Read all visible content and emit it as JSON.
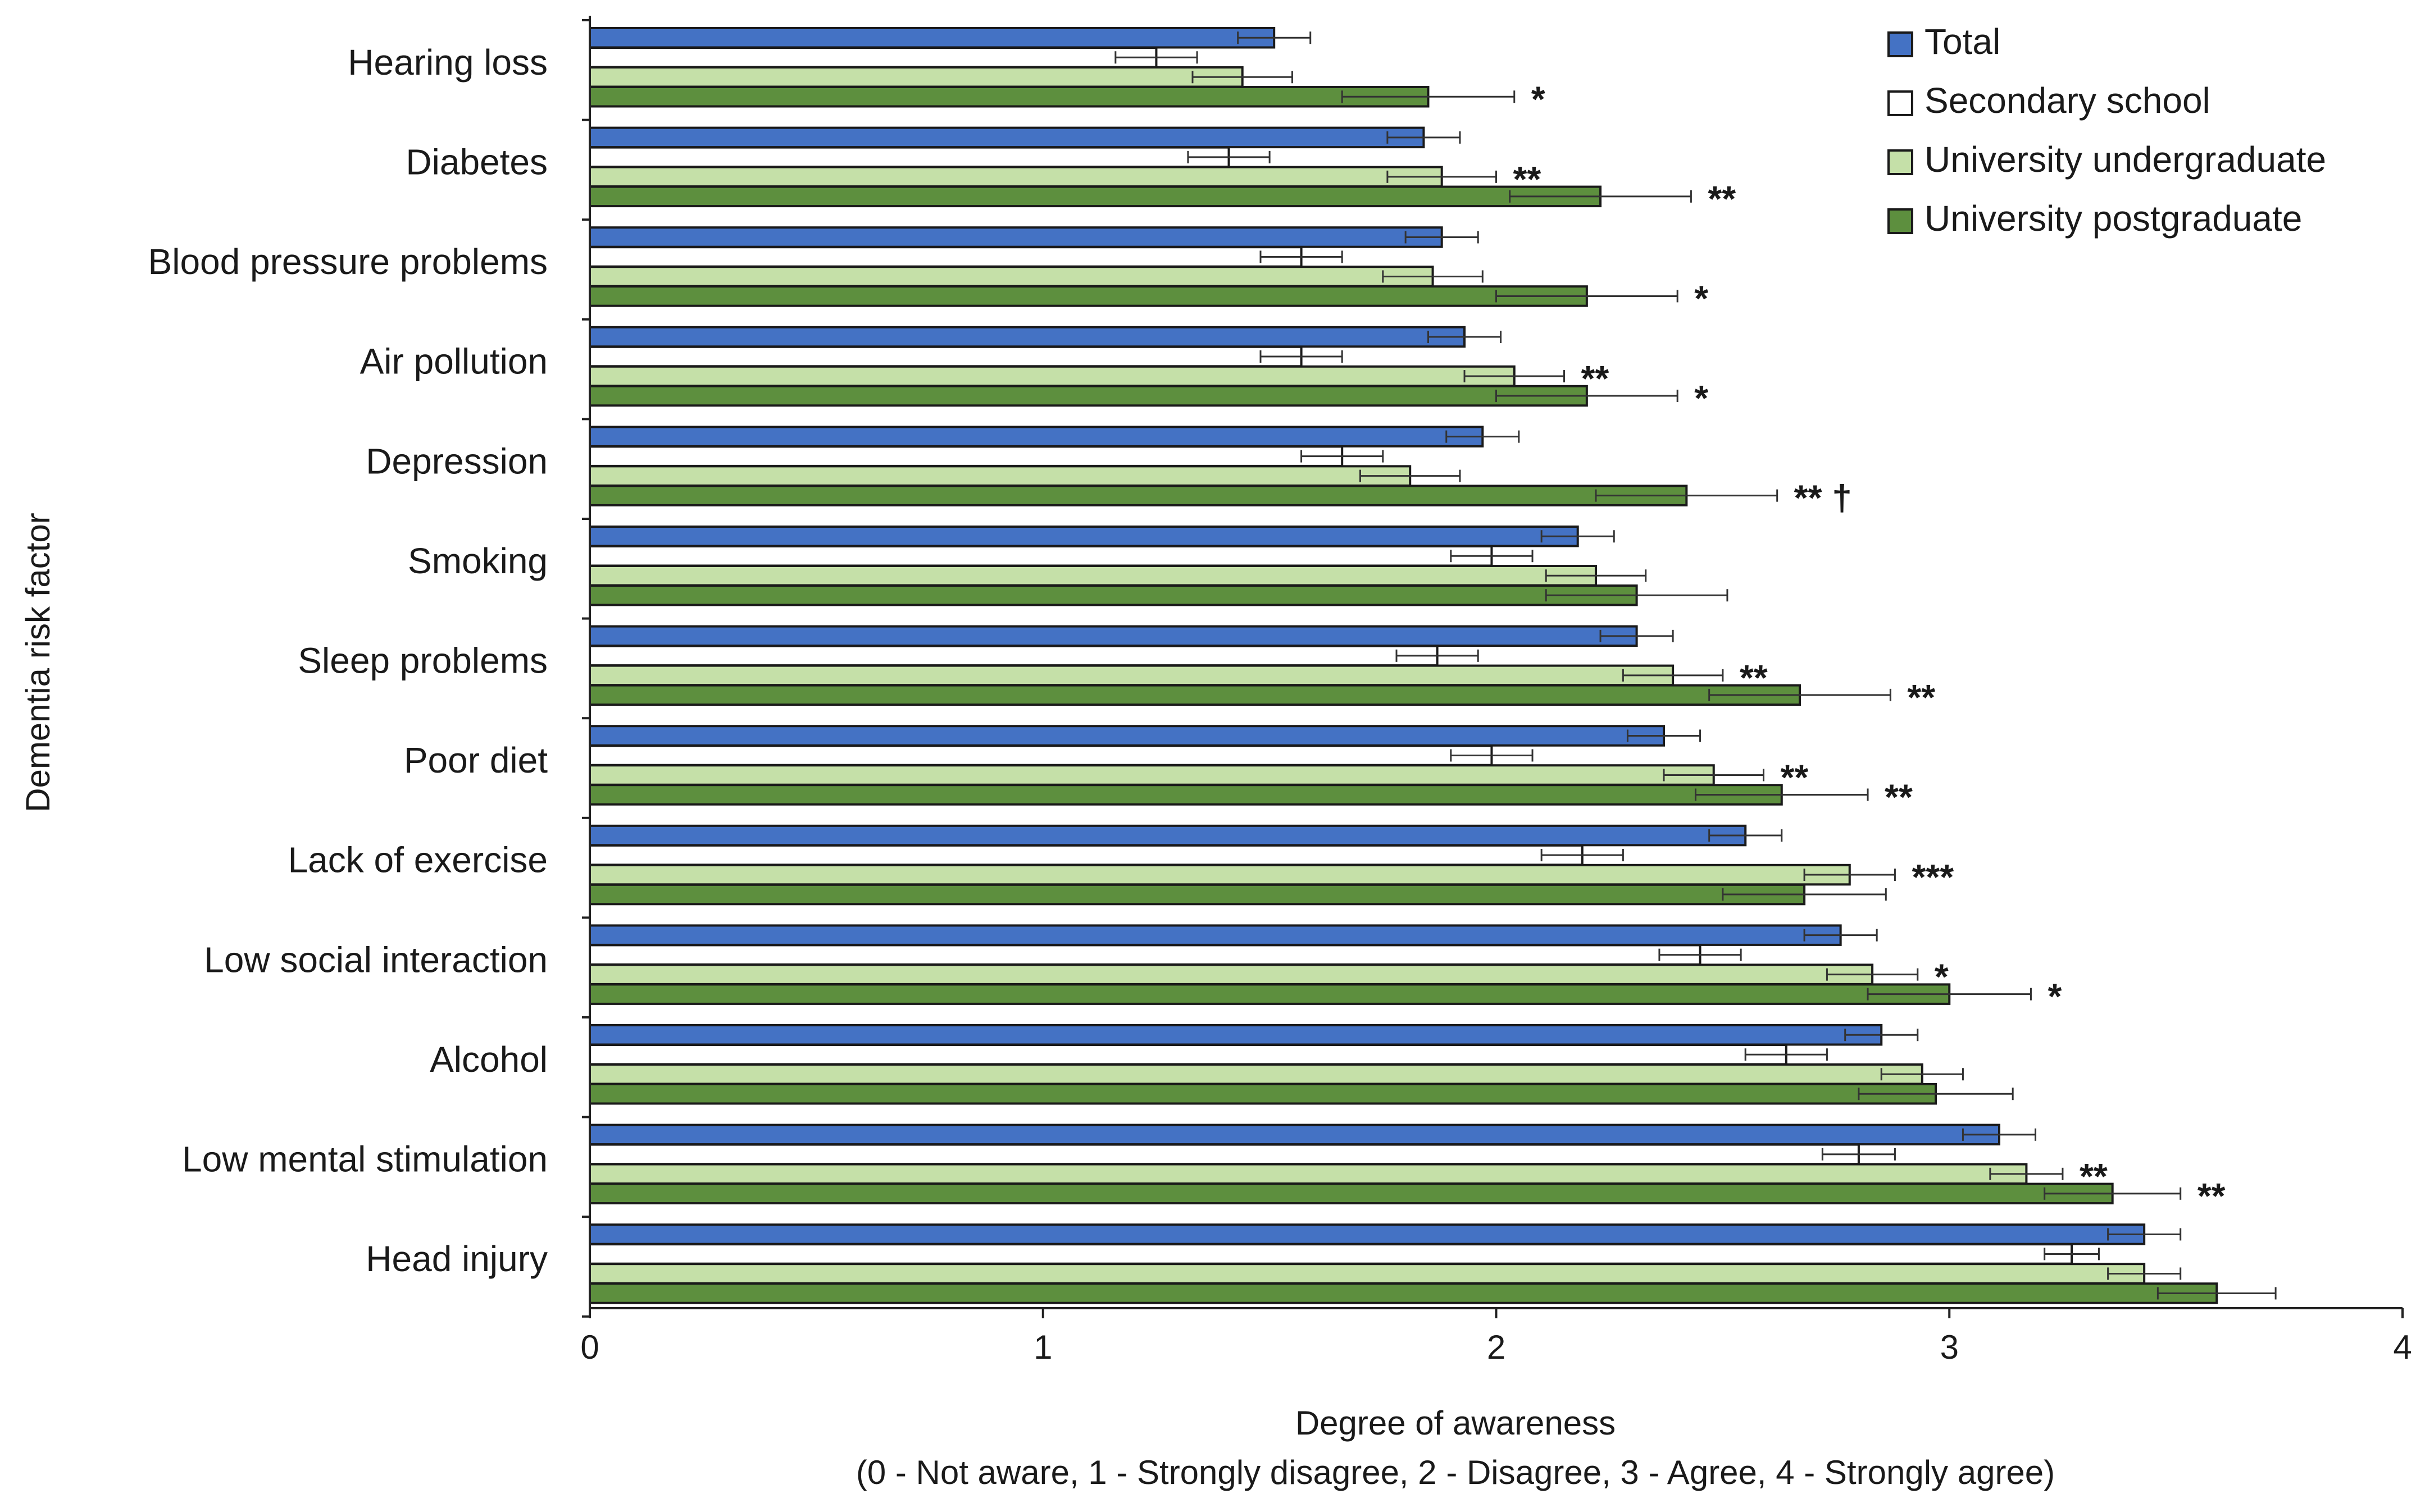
{
  "chart_data": {
    "type": "bar",
    "orientation": "horizontal",
    "xlabel": "Degree of awareness",
    "xlabel_sub": "(0 - Not aware, 1 - Strongly disagree, 2 - Disagree, 3 - Agree, 4 - Strongly agree)",
    "ylabel": "Dementia risk factor",
    "xlim": [
      0,
      4
    ],
    "xticks": [
      "0",
      "1",
      "2",
      "3",
      "4"
    ],
    "legend_position": "top-right",
    "categories": [
      "Hearing loss",
      "Diabetes",
      "Blood pressure problems",
      "Air pollution",
      "Depression",
      "Smoking",
      "Sleep problems",
      "Poor diet",
      "Lack of exercise",
      "Low social interaction",
      "Alcohol",
      "Low mental stimulation",
      "Head injury"
    ],
    "series": [
      {
        "name": "Total",
        "color": "#4472c4",
        "values": [
          1.51,
          1.84,
          1.88,
          1.93,
          1.97,
          2.18,
          2.31,
          2.37,
          2.55,
          2.76,
          2.85,
          3.11,
          3.43
        ],
        "errors": [
          0.08,
          0.08,
          0.08,
          0.08,
          0.08,
          0.08,
          0.08,
          0.08,
          0.08,
          0.08,
          0.08,
          0.08,
          0.08
        ]
      },
      {
        "name": "Secondary school",
        "color": "#ffffff",
        "values": [
          1.25,
          1.41,
          1.57,
          1.57,
          1.66,
          1.99,
          1.87,
          1.99,
          2.19,
          2.45,
          2.64,
          2.8,
          3.27
        ],
        "errors": [
          0.09,
          0.09,
          0.09,
          0.09,
          0.09,
          0.09,
          0.09,
          0.09,
          0.09,
          0.09,
          0.09,
          0.08,
          0.06
        ]
      },
      {
        "name": "University undergraduate",
        "color": "#c5e0a8",
        "values": [
          1.44,
          1.88,
          1.86,
          2.04,
          1.81,
          2.22,
          2.39,
          2.48,
          2.78,
          2.83,
          2.94,
          3.17,
          3.43
        ],
        "errors": [
          0.11,
          0.12,
          0.11,
          0.11,
          0.11,
          0.11,
          0.11,
          0.11,
          0.1,
          0.1,
          0.09,
          0.08,
          0.08
        ]
      },
      {
        "name": "University postgraduate",
        "color": "#5d8f3e",
        "values": [
          1.85,
          2.23,
          2.2,
          2.2,
          2.42,
          2.31,
          2.67,
          2.63,
          2.68,
          3.0,
          2.97,
          3.36,
          3.59
        ],
        "errors": [
          0.19,
          0.2,
          0.2,
          0.2,
          0.2,
          0.2,
          0.2,
          0.19,
          0.18,
          0.18,
          0.17,
          0.15,
          0.13
        ]
      }
    ],
    "annotations": [
      {
        "category": "Hearing loss",
        "series": "University postgraduate",
        "text": "*"
      },
      {
        "category": "Diabetes",
        "series": "University undergraduate",
        "text": "**"
      },
      {
        "category": "Diabetes",
        "series": "University postgraduate",
        "text": "**"
      },
      {
        "category": "Blood pressure problems",
        "series": "University postgraduate",
        "text": "*"
      },
      {
        "category": "Air pollution",
        "series": "University undergraduate",
        "text": "**"
      },
      {
        "category": "Air pollution",
        "series": "University postgraduate",
        "text": "*"
      },
      {
        "category": "Depression",
        "series": "University postgraduate",
        "text": "** †"
      },
      {
        "category": "Sleep problems",
        "series": "University undergraduate",
        "text": "**"
      },
      {
        "category": "Sleep problems",
        "series": "University postgraduate",
        "text": "**"
      },
      {
        "category": "Poor diet",
        "series": "University undergraduate",
        "text": "**"
      },
      {
        "category": "Poor diet",
        "series": "University postgraduate",
        "text": "**"
      },
      {
        "category": "Lack of exercise",
        "series": "University undergraduate",
        "text": "***"
      },
      {
        "category": "Low social interaction",
        "series": "University undergraduate",
        "text": "*"
      },
      {
        "category": "Low social interaction",
        "series": "University postgraduate",
        "text": "*"
      },
      {
        "category": "Low mental stimulation",
        "series": "University undergraduate",
        "text": "**"
      },
      {
        "category": "Low mental stimulation",
        "series": "University postgraduate",
        "text": "**"
      }
    ]
  }
}
